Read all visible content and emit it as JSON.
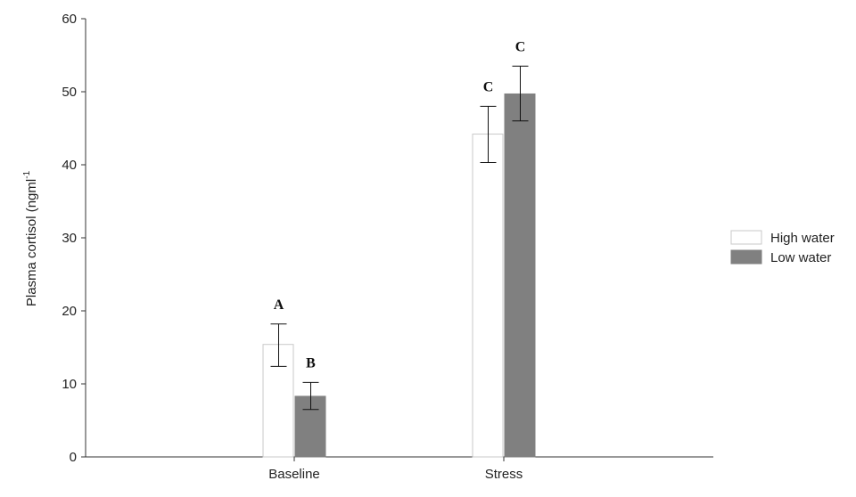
{
  "chart_data": {
    "type": "bar",
    "title": "",
    "xlabel": "",
    "ylabel": "Plasma cortisol (ngml",
    "ylabel_superscript": "-1",
    "ylim": [
      0,
      60
    ],
    "yticks": [
      0,
      10,
      20,
      30,
      40,
      50,
      60
    ],
    "categories": [
      "Baseline",
      "Stress"
    ],
    "series": [
      {
        "name": "High water",
        "color": "#ffffff",
        "stroke": "#c8c8c8",
        "values": [
          15.4,
          44.2
        ],
        "error_low": [
          12.4,
          40.3
        ],
        "error_high": [
          18.2,
          48.0
        ],
        "letters": [
          "A",
          "C"
        ]
      },
      {
        "name": "Low water",
        "color": "#808080",
        "stroke": "#808080",
        "values": [
          8.3,
          49.7
        ],
        "error_low": [
          6.5,
          46.0
        ],
        "error_high": [
          10.2,
          53.5
        ],
        "letters": [
          "B",
          "C"
        ]
      }
    ],
    "grid": false,
    "legend": "right"
  }
}
